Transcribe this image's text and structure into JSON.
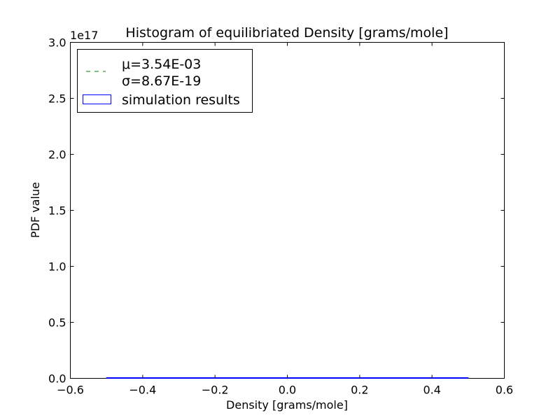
{
  "chart_data": {
    "type": "bar",
    "title": "Histogram of equilibriated Density [grams/mole]",
    "xlabel": "Density [grams/mole]",
    "ylabel": "PDF value",
    "xlim": [
      -0.6,
      0.6
    ],
    "ylim": [
      0,
      3.0
    ],
    "y_scale_factor_label": "1e17",
    "xticks": [
      -0.6,
      -0.4,
      -0.2,
      0.0,
      0.2,
      0.4,
      0.6
    ],
    "xtick_labels": [
      "−0.6",
      "−0.4",
      "−0.2",
      "0.0",
      "0.2",
      "0.4",
      "0.6"
    ],
    "yticks": [
      0.0,
      0.5,
      1.0,
      1.5,
      2.0,
      2.5,
      3.0
    ],
    "ytick_labels": [
      "0.0",
      "0.5",
      "1.0",
      "1.5",
      "2.0",
      "2.5",
      "3.0"
    ],
    "grid": false,
    "legend_position": "top-left",
    "bars": [
      {
        "x_start": -0.5,
        "x_end": 0.5,
        "height": 0
      }
    ],
    "series": [
      {
        "name": "simulation results",
        "style": "histogram",
        "color": "#0000ff"
      },
      {
        "mu_label": "μ=3.54E-03",
        "sigma_label": "σ=8.67E-19",
        "style": "dashed-line",
        "color": "#008000"
      }
    ]
  }
}
